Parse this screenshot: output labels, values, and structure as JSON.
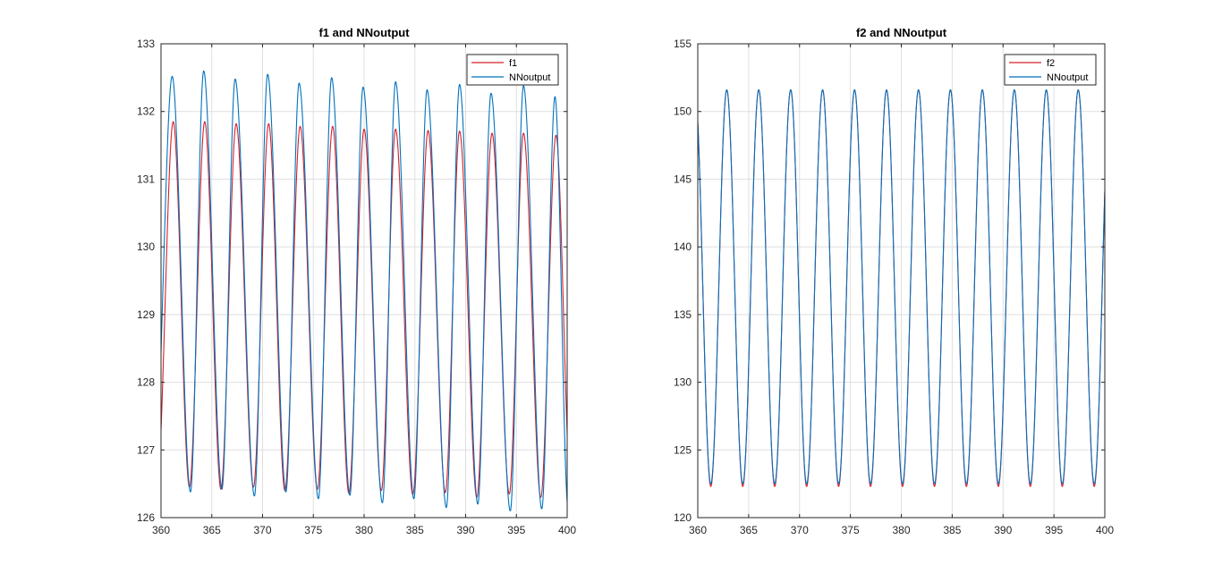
{
  "chart_data": [
    {
      "type": "line",
      "title": "f1 and NNoutput",
      "xlabel": "",
      "ylabel": "",
      "xlim": [
        360,
        400
      ],
      "ylim": [
        126,
        133
      ],
      "xticks": [
        360,
        365,
        370,
        375,
        380,
        385,
        390,
        395,
        400
      ],
      "yticks": [
        126,
        127,
        128,
        129,
        130,
        131,
        132,
        133
      ],
      "xtick_labels": [
        "360",
        "365",
        "370",
        "375",
        "380",
        "385",
        "390",
        "395",
        "400"
      ],
      "ytick_labels": [
        "126",
        "127",
        "128",
        "129",
        "130",
        "131",
        "132",
        "133"
      ],
      "grid": true,
      "legend_position": "top-right",
      "period": 3.14,
      "series": [
        {
          "name": "f1",
          "color": "#d6202a",
          "peaks": [
            {
              "x": 361.2,
              "y": 131.85
            },
            {
              "x": 364.3,
              "y": 131.85
            },
            {
              "x": 367.4,
              "y": 131.82
            },
            {
              "x": 370.6,
              "y": 131.82
            },
            {
              "x": 373.7,
              "y": 131.78
            },
            {
              "x": 376.9,
              "y": 131.78
            },
            {
              "x": 380.0,
              "y": 131.74
            },
            {
              "x": 383.1,
              "y": 131.74
            },
            {
              "x": 386.3,
              "y": 131.72
            },
            {
              "x": 389.4,
              "y": 131.71
            },
            {
              "x": 392.6,
              "y": 131.68
            },
            {
              "x": 395.7,
              "y": 131.68
            },
            {
              "x": 398.9,
              "y": 131.65
            }
          ],
          "troughs": [
            {
              "x": 362.8,
              "y": 126.45
            },
            {
              "x": 365.9,
              "y": 126.42
            },
            {
              "x": 369.1,
              "y": 126.45
            },
            {
              "x": 372.2,
              "y": 126.4
            },
            {
              "x": 375.4,
              "y": 126.42
            },
            {
              "x": 378.5,
              "y": 126.36
            },
            {
              "x": 381.7,
              "y": 126.4
            },
            {
              "x": 384.8,
              "y": 126.34
            },
            {
              "x": 388.0,
              "y": 126.37
            },
            {
              "x": 391.1,
              "y": 126.3
            },
            {
              "x": 394.3,
              "y": 126.35
            },
            {
              "x": 397.4,
              "y": 126.3
            }
          ]
        },
        {
          "name": "NNoutput",
          "color": "#0072bd",
          "peaks": [
            {
              "x": 361.1,
              "y": 132.52
            },
            {
              "x": 364.2,
              "y": 132.6
            },
            {
              "x": 367.3,
              "y": 132.48
            },
            {
              "x": 370.5,
              "y": 132.55
            },
            {
              "x": 373.6,
              "y": 132.42
            },
            {
              "x": 376.8,
              "y": 132.5
            },
            {
              "x": 379.9,
              "y": 132.36
            },
            {
              "x": 383.1,
              "y": 132.44
            },
            {
              "x": 386.2,
              "y": 132.32
            },
            {
              "x": 389.4,
              "y": 132.4
            },
            {
              "x": 392.5,
              "y": 132.27
            },
            {
              "x": 395.7,
              "y": 132.38
            },
            {
              "x": 398.8,
              "y": 132.22
            }
          ],
          "troughs": [
            {
              "x": 362.9,
              "y": 126.38
            },
            {
              "x": 366.0,
              "y": 126.42
            },
            {
              "x": 369.2,
              "y": 126.32
            },
            {
              "x": 372.3,
              "y": 126.38
            },
            {
              "x": 375.5,
              "y": 126.28
            },
            {
              "x": 378.6,
              "y": 126.33
            },
            {
              "x": 381.8,
              "y": 126.22
            },
            {
              "x": 384.9,
              "y": 126.28
            },
            {
              "x": 388.1,
              "y": 126.15
            },
            {
              "x": 391.2,
              "y": 126.2
            },
            {
              "x": 394.4,
              "y": 126.1
            },
            {
              "x": 397.5,
              "y": 126.13
            }
          ]
        }
      ]
    },
    {
      "type": "line",
      "title": "f2 and NNoutput",
      "xlabel": "",
      "ylabel": "",
      "xlim": [
        360,
        400
      ],
      "ylim": [
        120,
        155
      ],
      "xticks": [
        360,
        365,
        370,
        375,
        380,
        385,
        390,
        395,
        400
      ],
      "yticks": [
        120,
        125,
        130,
        135,
        140,
        145,
        150,
        155
      ],
      "xtick_labels": [
        "360",
        "365",
        "370",
        "375",
        "380",
        "385",
        "390",
        "395",
        "400"
      ],
      "ytick_labels": [
        "120",
        "125",
        "130",
        "135",
        "140",
        "145",
        "150",
        "155"
      ],
      "grid": true,
      "legend_position": "top-right",
      "period": 3.14,
      "amplitude": 14.6,
      "mean": 137.0,
      "first_peak_x": 362.85,
      "series": [
        {
          "name": "f2",
          "color": "#d6202a",
          "max": 151.6,
          "min": 122.3
        },
        {
          "name": "NNoutput",
          "color": "#0072bd",
          "max": 151.6,
          "min": 122.5
        }
      ]
    }
  ]
}
